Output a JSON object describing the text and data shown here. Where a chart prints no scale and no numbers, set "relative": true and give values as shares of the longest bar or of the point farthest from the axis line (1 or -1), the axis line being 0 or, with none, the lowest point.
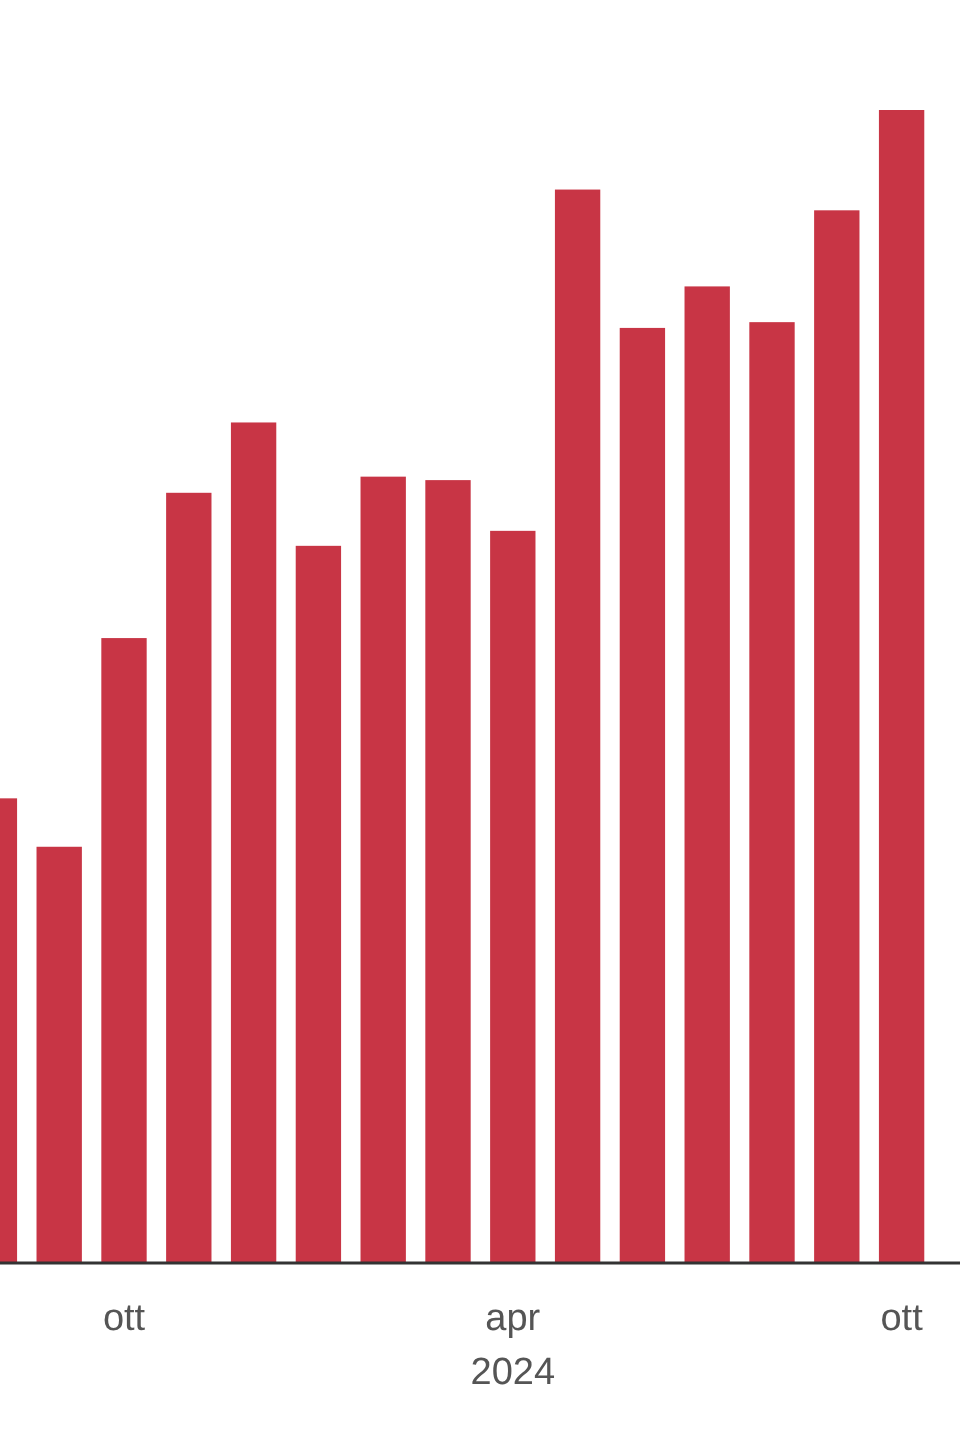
{
  "chart_data": {
    "type": "bar",
    "relative": true,
    "categories": [
      null,
      null,
      "ott",
      null,
      null,
      null,
      null,
      null,
      "apr\n2024",
      null,
      null,
      null,
      null,
      null,
      "ott"
    ],
    "values": [
      0.403,
      0.361,
      0.542,
      0.668,
      0.729,
      0.622,
      0.682,
      0.679,
      0.635,
      0.931,
      0.811,
      0.847,
      0.816,
      0.913,
      1
    ],
    "color": "#c83545",
    "grid": false
  }
}
